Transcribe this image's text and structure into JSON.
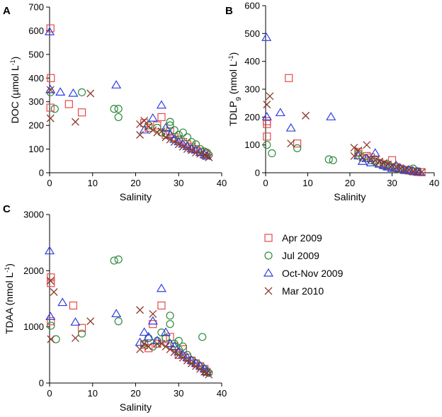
{
  "legend": [
    {
      "name": "Apr 2009",
      "marker": "square",
      "color": "#e8484b"
    },
    {
      "name": "Jul 2009",
      "marker": "circle",
      "color": "#2e8b3e"
    },
    {
      "name": "Oct-Nov 2009",
      "marker": "triangle",
      "color": "#2f3fe0"
    },
    {
      "name": "Mar 2010",
      "marker": "cross",
      "color": "#8b3a2a"
    }
  ],
  "chart_data": [
    {
      "panel": "A",
      "type": "scatter",
      "xlabel": "Salinity",
      "ylabel_main": "DOC (µmol L",
      "ylabel_sup": "-1",
      "ylabel_end": ")",
      "xlim": [
        0,
        40
      ],
      "ylim": [
        0,
        700
      ],
      "xticks": [
        0,
        10,
        20,
        30,
        40
      ],
      "yticks": [
        0,
        100,
        200,
        300,
        400,
        500,
        600,
        700
      ],
      "series": [
        {
          "name": "Apr 2009",
          "points": [
            [
              0.2,
              610
            ],
            [
              0.3,
              400
            ],
            [
              0.2,
              275
            ],
            [
              4.5,
              290
            ],
            [
              7.5,
              255
            ],
            [
              22,
              210
            ],
            [
              23,
              190
            ],
            [
              25,
              200
            ],
            [
              26,
              235
            ],
            [
              27,
              160
            ],
            [
              28,
              175
            ],
            [
              29,
              150
            ],
            [
              30,
              140
            ],
            [
              31,
              130
            ],
            [
              32,
              120
            ],
            [
              33,
              110
            ],
            [
              34,
              100
            ],
            [
              35,
              90
            ],
            [
              36,
              85
            ],
            [
              36.5,
              80
            ]
          ]
        },
        {
          "name": "Jul 2009",
          "points": [
            [
              0.2,
              340
            ],
            [
              1.2,
              270
            ],
            [
              7.5,
              340
            ],
            [
              15,
              270
            ],
            [
              16,
              270
            ],
            [
              16,
              235
            ],
            [
              23,
              200
            ],
            [
              25,
              190
            ],
            [
              26,
              170
            ],
            [
              27,
              165
            ],
            [
              28,
              215
            ],
            [
              28,
              200
            ],
            [
              29,
              180
            ],
            [
              30,
              160
            ],
            [
              30,
              140
            ],
            [
              31,
              170
            ],
            [
              32,
              150
            ],
            [
              33,
              130
            ],
            [
              34,
              120
            ],
            [
              35,
              100
            ],
            [
              36,
              90
            ],
            [
              36.5,
              85
            ],
            [
              37,
              75
            ]
          ]
        },
        {
          "name": "Oct-Nov 2009",
          "points": [
            [
              0,
              595
            ],
            [
              0.2,
              350
            ],
            [
              2.5,
              340
            ],
            [
              5.5,
              335
            ],
            [
              15.5,
              370
            ],
            [
              22,
              180
            ],
            [
              24,
              230
            ],
            [
              26,
              285
            ],
            [
              27,
              190
            ],
            [
              28,
              160
            ],
            [
              29,
              140
            ],
            [
              30,
              130
            ],
            [
              31,
              120
            ],
            [
              32,
              110
            ],
            [
              33,
              100
            ],
            [
              34,
              95
            ],
            [
              35,
              85
            ],
            [
              36,
              75
            ],
            [
              36.5,
              70
            ]
          ]
        },
        {
          "name": "Mar 2010",
          "points": [
            [
              0.2,
              350
            ],
            [
              0.2,
              230
            ],
            [
              6,
              215
            ],
            [
              9.5,
              335
            ],
            [
              21,
              205
            ],
            [
              21,
              160
            ],
            [
              22,
              220
            ],
            [
              23,
              195
            ],
            [
              24,
              180
            ],
            [
              25,
              170
            ],
            [
              26,
              175
            ],
            [
              27,
              150
            ],
            [
              28,
              140
            ],
            [
              29,
              130
            ],
            [
              30,
              120
            ],
            [
              31,
              110
            ],
            [
              32,
              100
            ],
            [
              33,
              95
            ],
            [
              34,
              85
            ],
            [
              35,
              80
            ],
            [
              36,
              75
            ],
            [
              36.5,
              70
            ],
            [
              37,
              65
            ]
          ]
        }
      ]
    },
    {
      "panel": "B",
      "type": "scatter",
      "xlabel": "Salinity",
      "ylabel_main": "TDLP",
      "ylabel_sub": "9",
      "ylabel_mid": " (nmol L",
      "ylabel_sup": "-1",
      "ylabel_end": ")",
      "xlim": [
        0,
        40
      ],
      "ylim": [
        0,
        600
      ],
      "xticks": [
        0,
        10,
        20,
        30,
        40
      ],
      "yticks": [
        0,
        100,
        200,
        300,
        400,
        500,
        600
      ],
      "series": [
        {
          "name": "Apr 2009",
          "points": [
            [
              0.3,
              185
            ],
            [
              0.3,
              175
            ],
            [
              0.3,
              130
            ],
            [
              5.5,
              340
            ],
            [
              7.5,
              105
            ],
            [
              22,
              75
            ],
            [
              24,
              60
            ],
            [
              25,
              55
            ],
            [
              26,
              45
            ],
            [
              27,
              35
            ],
            [
              28,
              30
            ],
            [
              29,
              25
            ],
            [
              30,
              45
            ],
            [
              31,
              20
            ],
            [
              32,
              15
            ],
            [
              33,
              10
            ],
            [
              34,
              8
            ],
            [
              35,
              5
            ],
            [
              36,
              3
            ],
            [
              37,
              2
            ]
          ]
        },
        {
          "name": "Jul 2009",
          "points": [
            [
              0.3,
              100
            ],
            [
              1.5,
              70
            ],
            [
              7.5,
              88
            ],
            [
              15,
              48
            ],
            [
              16,
              45
            ],
            [
              22,
              70
            ],
            [
              23,
              55
            ],
            [
              25,
              45
            ],
            [
              26,
              40
            ],
            [
              27,
              35
            ],
            [
              28,
              25
            ],
            [
              29,
              30
            ],
            [
              30,
              20
            ],
            [
              31,
              15
            ],
            [
              32,
              12
            ],
            [
              33,
              10
            ],
            [
              34,
              8
            ],
            [
              35,
              15
            ],
            [
              36,
              5
            ]
          ]
        },
        {
          "name": "Oct-Nov 2009",
          "points": [
            [
              0.2,
              485
            ],
            [
              0.3,
              200
            ],
            [
              3.5,
              215
            ],
            [
              6,
              160
            ],
            [
              15.5,
              200
            ],
            [
              22,
              60
            ],
            [
              23,
              40
            ],
            [
              24,
              50
            ],
            [
              25,
              35
            ],
            [
              26,
              70
            ],
            [
              27,
              30
            ],
            [
              28,
              25
            ],
            [
              29,
              20
            ],
            [
              30,
              15
            ],
            [
              31,
              25
            ],
            [
              32,
              15
            ],
            [
              33,
              8
            ],
            [
              34,
              10
            ],
            [
              35,
              5
            ],
            [
              36,
              3
            ],
            [
              36.5,
              2
            ]
          ]
        },
        {
          "name": "Mar 2010",
          "points": [
            [
              0.3,
              245
            ],
            [
              1,
              275
            ],
            [
              6,
              105
            ],
            [
              9.5,
              205
            ],
            [
              21,
              90
            ],
            [
              21,
              60
            ],
            [
              22,
              80
            ],
            [
              23,
              55
            ],
            [
              24,
              100
            ],
            [
              25,
              50
            ],
            [
              26,
              45
            ],
            [
              27,
              40
            ],
            [
              28,
              35
            ],
            [
              29,
              30
            ],
            [
              30,
              25
            ],
            [
              31,
              20
            ],
            [
              32,
              15
            ],
            [
              33,
              12
            ],
            [
              34,
              10
            ],
            [
              35,
              5
            ],
            [
              36,
              3
            ],
            [
              37,
              2
            ]
          ]
        }
      ]
    },
    {
      "panel": "C",
      "type": "scatter",
      "xlabel": "Salinity",
      "ylabel_main": "TDAA (nmol L",
      "ylabel_sup": "-1",
      "ylabel_end": ")",
      "xlim": [
        0,
        40
      ],
      "ylim": [
        0,
        3000
      ],
      "xticks": [
        0,
        10,
        20,
        30,
        40
      ],
      "yticks": [
        0,
        1000,
        2000,
        3000
      ],
      "series": [
        {
          "name": "Apr 2009",
          "points": [
            [
              0.3,
              1880
            ],
            [
              0.3,
              1780
            ],
            [
              0.3,
              1100
            ],
            [
              5.5,
              1380
            ],
            [
              7.5,
              980
            ],
            [
              22,
              680
            ],
            [
              23,
              620
            ],
            [
              24,
              1050
            ],
            [
              25,
              700
            ],
            [
              26,
              1380
            ],
            [
              27,
              780
            ],
            [
              28,
              820
            ],
            [
              29,
              650
            ],
            [
              30,
              500
            ],
            [
              31,
              600
            ],
            [
              32,
              450
            ],
            [
              33,
              400
            ],
            [
              34,
              350
            ],
            [
              35,
              300
            ],
            [
              36,
              250
            ],
            [
              36.5,
              200
            ]
          ]
        },
        {
          "name": "Jul 2009",
          "points": [
            [
              0.3,
              1020
            ],
            [
              1.5,
              780
            ],
            [
              7.5,
              880
            ],
            [
              15,
              2180
            ],
            [
              16,
              2200
            ],
            [
              16,
              1100
            ],
            [
              22,
              700
            ],
            [
              23,
              800
            ],
            [
              24,
              650
            ],
            [
              25,
              750
            ],
            [
              26,
              900
            ],
            [
              27,
              800
            ],
            [
              28,
              1200
            ],
            [
              28,
              1050
            ],
            [
              29,
              700
            ],
            [
              30,
              600
            ],
            [
              30,
              750
            ],
            [
              31,
              650
            ],
            [
              32,
              500
            ],
            [
              33,
              400
            ],
            [
              34,
              350
            ],
            [
              35,
              300
            ],
            [
              35.5,
              820
            ],
            [
              36,
              250
            ],
            [
              36.5,
              200
            ],
            [
              37,
              180
            ]
          ]
        },
        {
          "name": "Oct-Nov 2009",
          "points": [
            [
              0,
              2350
            ],
            [
              0.2,
              1180
            ],
            [
              3,
              1430
            ],
            [
              6,
              1080
            ],
            [
              15.5,
              1230
            ],
            [
              21,
              720
            ],
            [
              22,
              900
            ],
            [
              23,
              820
            ],
            [
              24,
              1100
            ],
            [
              25,
              750
            ],
            [
              26,
              1680
            ],
            [
              27,
              900
            ],
            [
              28,
              700
            ],
            [
              29,
              650
            ],
            [
              30,
              550
            ],
            [
              31,
              500
            ],
            [
              32,
              450
            ],
            [
              33,
              400
            ],
            [
              34,
              350
            ],
            [
              35,
              300
            ],
            [
              36,
              250
            ],
            [
              36.5,
              200
            ]
          ]
        },
        {
          "name": "Mar 2010",
          "points": [
            [
              0.2,
              1820
            ],
            [
              0.3,
              780
            ],
            [
              1,
              1620
            ],
            [
              6,
              800
            ],
            [
              9.5,
              1100
            ],
            [
              21,
              600
            ],
            [
              21,
              1300
            ],
            [
              22,
              700
            ],
            [
              23,
              650
            ],
            [
              24,
              1230
            ],
            [
              25,
              700
            ],
            [
              26,
              700
            ],
            [
              27,
              650
            ],
            [
              28,
              600
            ],
            [
              29,
              550
            ],
            [
              30,
              500
            ],
            [
              31,
              450
            ],
            [
              32,
              400
            ],
            [
              33,
              350
            ],
            [
              34,
              300
            ],
            [
              35,
              250
            ],
            [
              36,
              200
            ],
            [
              36.5,
              180
            ],
            [
              37,
              150
            ]
          ]
        }
      ]
    }
  ]
}
